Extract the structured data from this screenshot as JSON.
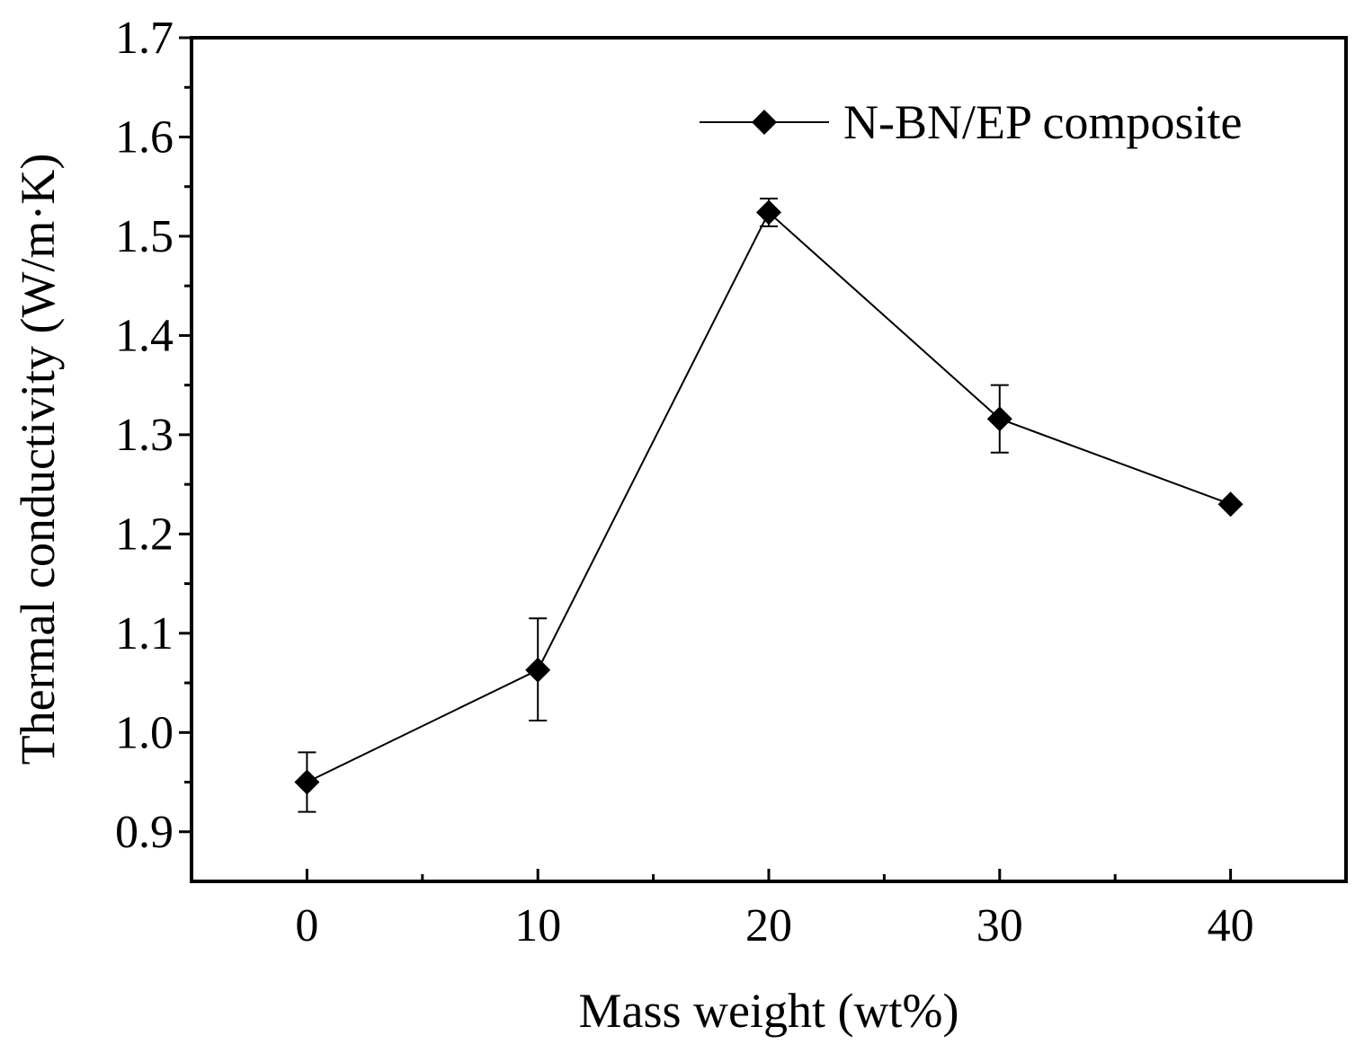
{
  "chart_data": {
    "type": "line",
    "title": "",
    "xlabel": "Mass weight (wt%)",
    "ylabel": "Thermal conductivity (W/m·K)",
    "xlim": [
      -5,
      45
    ],
    "ylim": [
      0.85,
      1.7
    ],
    "x_ticks": [
      0,
      10,
      20,
      30,
      40
    ],
    "y_ticks": [
      0.9,
      1.0,
      1.1,
      1.2,
      1.3,
      1.4,
      1.5,
      1.6,
      1.7
    ],
    "x_tick_labels": [
      "0",
      "10",
      "20",
      "30",
      "40"
    ],
    "y_tick_labels": [
      "0.9",
      "1.0",
      "1.1",
      "1.2",
      "1.3",
      "1.4",
      "1.5",
      "1.6",
      "1.7"
    ],
    "legend_position": "top-right",
    "series": [
      {
        "name": "N-BN/EP composite",
        "marker": "diamond",
        "color": "#000000",
        "x": [
          0,
          10,
          20,
          30,
          40
        ],
        "y": [
          0.95,
          1.063,
          1.524,
          1.316,
          1.23
        ],
        "err_low": [
          0.92,
          1.012,
          1.51,
          1.282,
          1.23
        ],
        "err_high": [
          0.98,
          1.115,
          1.538,
          1.35,
          1.23
        ]
      }
    ]
  }
}
